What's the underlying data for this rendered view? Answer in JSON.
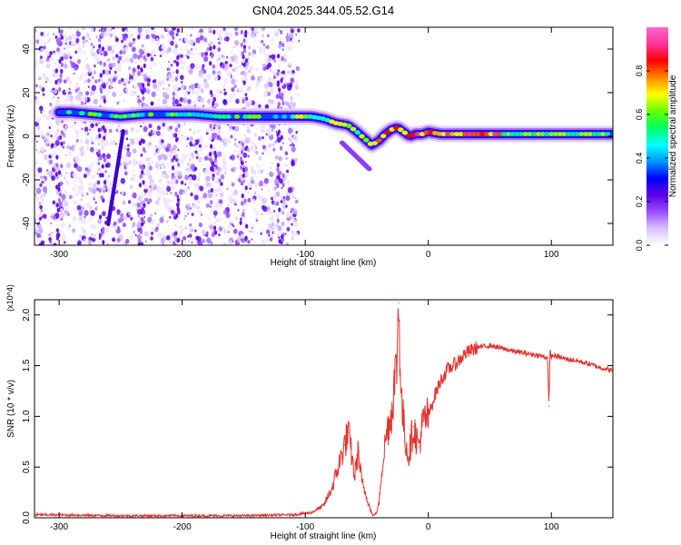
{
  "title": "GN04.2025.344.05.52.G14",
  "chart_data": [
    {
      "type": "heatmap",
      "xlabel": "Height of straight line (km)",
      "ylabel": "Frequency (Hz)",
      "xlim": [
        -320,
        150
      ],
      "ylim": [
        -50,
        50
      ],
      "x_ticks": [
        -300,
        -200,
        -100,
        0,
        100
      ],
      "x_tick_labels": [
        "-300",
        "-200",
        "-100",
        "0",
        "100"
      ],
      "y_ticks": [
        -40,
        -20,
        0,
        20,
        40
      ],
      "y_tick_labels": [
        "-40",
        "-20",
        "0",
        "20",
        "40"
      ],
      "ridge_x": [
        -290,
        -270,
        -250,
        -230,
        -210,
        -190,
        -170,
        -150,
        -130,
        -110,
        -95,
        -85,
        -75,
        -65,
        -58,
        -52,
        -46,
        -40,
        -35,
        -30,
        -25,
        -20,
        -15,
        -10,
        -5,
        0,
        10,
        20,
        40,
        60,
        80,
        100,
        120,
        150
      ],
      "ridge_freq": [
        11,
        10,
        9,
        10,
        10,
        10,
        9,
        9,
        9,
        9,
        9,
        8,
        6,
        5,
        2,
        -1,
        -4,
        -2,
        1,
        3,
        4,
        2,
        0,
        1,
        1,
        2,
        1,
        1,
        1,
        1,
        1,
        1,
        1,
        1
      ],
      "colorbar": {
        "label": "Normalized spectral amplitude",
        "range": [
          0,
          1
        ],
        "ticks": [
          0.0,
          0.2,
          0.4,
          0.6,
          0.8
        ],
        "tick_labels": [
          "0.0",
          "0.2",
          "0.4",
          "0.6",
          "0.8"
        ],
        "colors": [
          "#ffffff",
          "#d9c3ff",
          "#9a4dff",
          "#5a00e6",
          "#0000ff",
          "#0099ff",
          "#00ffff",
          "#00ff66",
          "#66ff00",
          "#ffff00",
          "#ff8800",
          "#ff0000",
          "#ff3399",
          "#ff66cc"
        ]
      }
    },
    {
      "type": "line",
      "xlabel": "Height of straight line (km)",
      "ylabel": "SNR (10 * v/v)",
      "y_scale_note": "(x10^4)",
      "xlim": [
        -320,
        150
      ],
      "ylim": [
        0,
        2.15
      ],
      "x_ticks": [
        -300,
        -200,
        -100,
        0,
        100
      ],
      "x_tick_labels": [
        "-300",
        "-200",
        "-100",
        "0",
        "100"
      ],
      "y_ticks": [
        0.0,
        0.5,
        1.0,
        1.5,
        2.0
      ],
      "y_tick_labels": [
        "0.0",
        "0.5",
        "1.0",
        "1.5",
        "2.0"
      ],
      "series": [
        {
          "name": "SNR",
          "color": "#e8302c",
          "x": [
            -320,
            -250,
            -200,
            -150,
            -110,
            -95,
            -85,
            -78,
            -72,
            -68,
            -65,
            -62,
            -60,
            -57,
            -54,
            -50,
            -47,
            -45,
            -42,
            -40,
            -38,
            -35,
            -32,
            -30,
            -28,
            -26,
            -24,
            -22,
            -21,
            -19,
            -16,
            -12,
            -8,
            -4,
            0,
            5,
            10,
            15,
            20,
            25,
            30,
            40,
            50,
            60,
            70,
            80,
            90,
            97,
            98,
            99,
            100,
            101,
            105,
            110,
            120,
            130,
            140,
            150
          ],
          "y": [
            0.03,
            0.02,
            0.02,
            0.02,
            0.03,
            0.05,
            0.12,
            0.3,
            0.55,
            0.72,
            0.84,
            0.6,
            0.4,
            0.65,
            0.35,
            0.2,
            0.08,
            0.02,
            0.05,
            0.15,
            0.45,
            0.75,
            0.95,
            1.0,
            1.3,
            1.45,
            2.12,
            1.2,
            1.05,
            0.8,
            0.6,
            0.9,
            0.7,
            0.95,
            1.0,
            1.2,
            1.35,
            1.45,
            1.5,
            1.55,
            1.62,
            1.68,
            1.7,
            1.67,
            1.64,
            1.62,
            1.6,
            1.58,
            1.1,
            1.65,
            1.58,
            1.6,
            1.59,
            1.57,
            1.55,
            1.52,
            1.48,
            1.45
          ]
        }
      ]
    }
  ]
}
